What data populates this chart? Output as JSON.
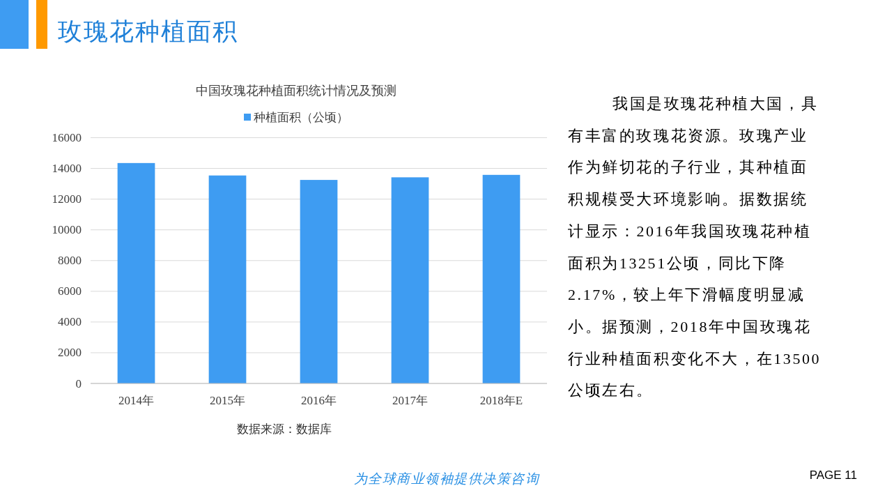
{
  "chart_data": {
    "type": "bar",
    "title": "中国玫瑰花种植面积统计情况及预测",
    "categories": [
      "2014年",
      "2015年",
      "2016年",
      "2017年",
      "2018年E"
    ],
    "series": [
      {
        "name": "种植面积（公顷）",
        "color": "#3e9cf2",
        "values": [
          14350,
          13540,
          13250,
          13420,
          13580
        ]
      }
    ],
    "ylim": [
      0,
      16000
    ],
    "yticks": [
      0,
      2000,
      4000,
      6000,
      8000,
      10000,
      12000,
      14000,
      16000
    ],
    "grid": "y",
    "legend": "top",
    "annotations": [
      "玫瑰花种植面积",
      "数据来源：数据库",
      "我国是玫瑰花种植大国，具有丰富的玫瑰花资源。玫瑰产业作为鲜切花的子行业，其种植面积规模受大环境影响。据数据统计显示：2016年我国玫瑰花种植面积为13251公顷，同比下降2.17%，较上年下滑幅度明显减小。据预测，2018年中国玫瑰花行业种植面积变化不大，在13500公顷左右。",
      "为全球商业领袖提供决策咨询",
      "PAGE 11"
    ]
  }
}
